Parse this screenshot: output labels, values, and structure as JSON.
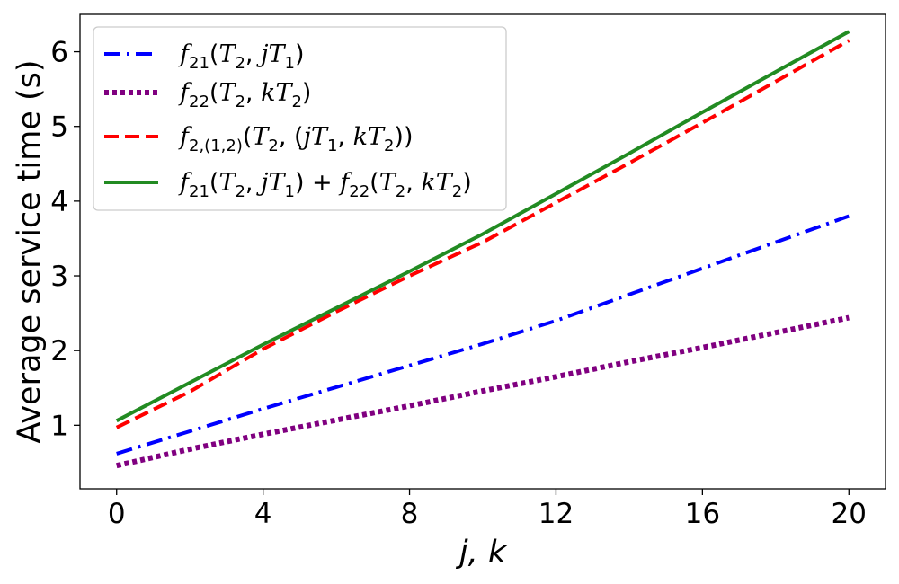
{
  "chart_data": {
    "type": "line",
    "xlabel": "j, k",
    "ylabel": "Average service time (s)",
    "xlim": [
      -1,
      21
    ],
    "ylim": [
      0.15,
      6.5
    ],
    "xticks": [
      0,
      4,
      8,
      12,
      16,
      20
    ],
    "yticks": [
      1,
      2,
      3,
      4,
      5,
      6
    ],
    "grid": false,
    "legend_position": "upper-left",
    "series": [
      {
        "name": "f21(T2, jT1)",
        "color": "#0000ff",
        "style": "dashdot",
        "x": [
          0,
          2,
          4,
          6,
          8,
          10,
          12,
          14,
          16,
          18,
          20
        ],
        "y": [
          0.62,
          0.92,
          1.22,
          1.51,
          1.8,
          2.09,
          2.4,
          2.75,
          3.1,
          3.45,
          3.8
        ]
      },
      {
        "name": "f22(T2, kT2)",
        "color": "#800080",
        "style": "dotted",
        "x": [
          0,
          2,
          4,
          6,
          8,
          10,
          12,
          14,
          16,
          18,
          20
        ],
        "y": [
          0.46,
          0.68,
          0.88,
          1.07,
          1.26,
          1.46,
          1.65,
          1.85,
          2.04,
          2.24,
          2.44
        ]
      },
      {
        "name": "f2,(1,2)(T2, (jT1, kT2))",
        "color": "#ff0000",
        "style": "dashed",
        "x": [
          0,
          2,
          4,
          6,
          8,
          10,
          12,
          14,
          16,
          18,
          20
        ],
        "y": [
          0.97,
          1.45,
          2.02,
          2.52,
          3.0,
          3.45,
          3.98,
          4.51,
          5.05,
          5.6,
          6.15
        ]
      },
      {
        "name": "f21(T2, jT1) + f22(T2, kT2)",
        "color": "#228b22",
        "style": "solid",
        "x": [
          0,
          2,
          4,
          6,
          8,
          10,
          12,
          14,
          16,
          18,
          20
        ],
        "y": [
          1.06,
          1.57,
          2.08,
          2.57,
          3.06,
          3.56,
          4.1,
          4.64,
          5.19,
          5.73,
          6.27
        ]
      }
    ]
  }
}
